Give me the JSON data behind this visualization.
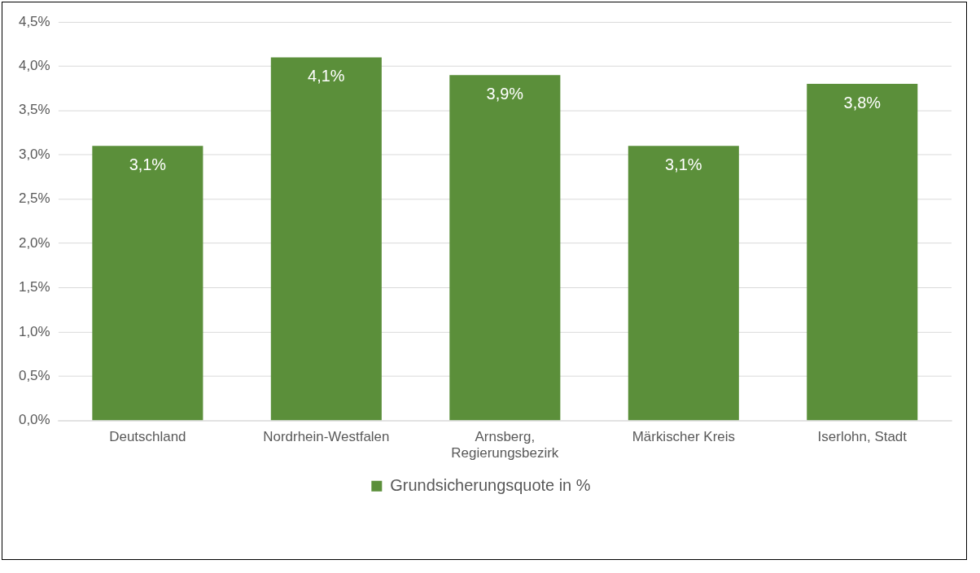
{
  "chart_data": {
    "type": "bar",
    "categories": [
      "Deutschland",
      "Nordrhein-Westfalen",
      "Arnsberg, Regierungsbezirk",
      "Märkischer Kreis",
      "Iserlohn, Stadt"
    ],
    "series": [
      {
        "name": "Grundsicherungsquote in %",
        "color": "#5b8f3a",
        "values": [
          3.1,
          4.1,
          3.9,
          3.1,
          3.8
        ],
        "value_labels": [
          "3,1%",
          "4,1%",
          "3,9%",
          "3,1%",
          "3,8%"
        ]
      }
    ],
    "ylim": [
      0,
      4.5
    ],
    "yticks": [
      {
        "value": 0,
        "label": "0,0%"
      },
      {
        "value": 0.5,
        "label": "0,5%"
      },
      {
        "value": 1,
        "label": "1,0%"
      },
      {
        "value": 1.5,
        "label": "1,5%"
      },
      {
        "value": 2,
        "label": "2,0%"
      },
      {
        "value": 2.5,
        "label": "2,5%"
      },
      {
        "value": 3,
        "label": "3,0%"
      },
      {
        "value": 3.5,
        "label": "3,5%"
      },
      {
        "value": 4,
        "label": "4,0%"
      },
      {
        "value": 4.5,
        "label": "4,5%"
      }
    ],
    "grid": "y",
    "legend": "bottom"
  }
}
